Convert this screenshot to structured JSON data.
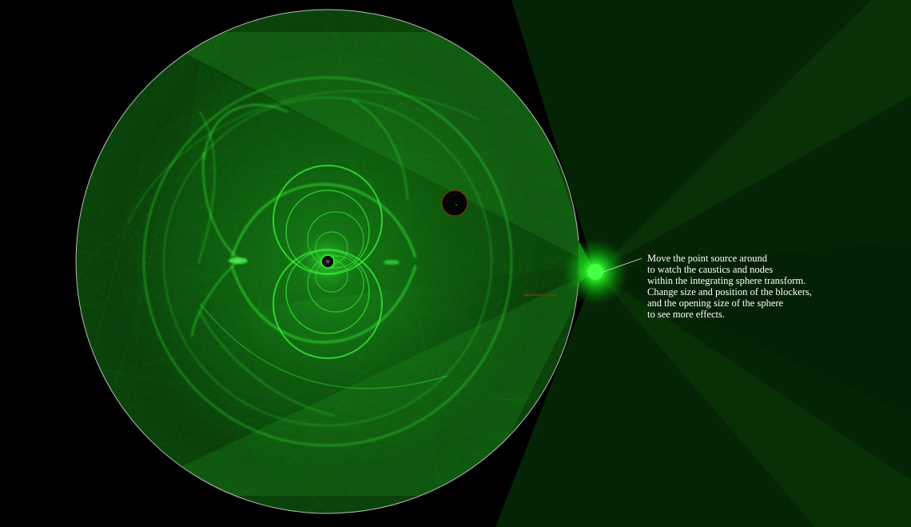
{
  "scene": {
    "colors": {
      "background": "#000000",
      "light": "#22ff22",
      "sphere_outline": "#d8d8d8",
      "blocker_rim": "#7a3a00",
      "text": "#ffffff"
    }
  },
  "instructions": {
    "lines": [
      "Move the point source around",
      "to watch the caustics and nodes",
      "within the integrating sphere transform.",
      "Change size and position of the blockers,",
      "and the opening size of the sphere",
      "to see more effects."
    ]
  }
}
